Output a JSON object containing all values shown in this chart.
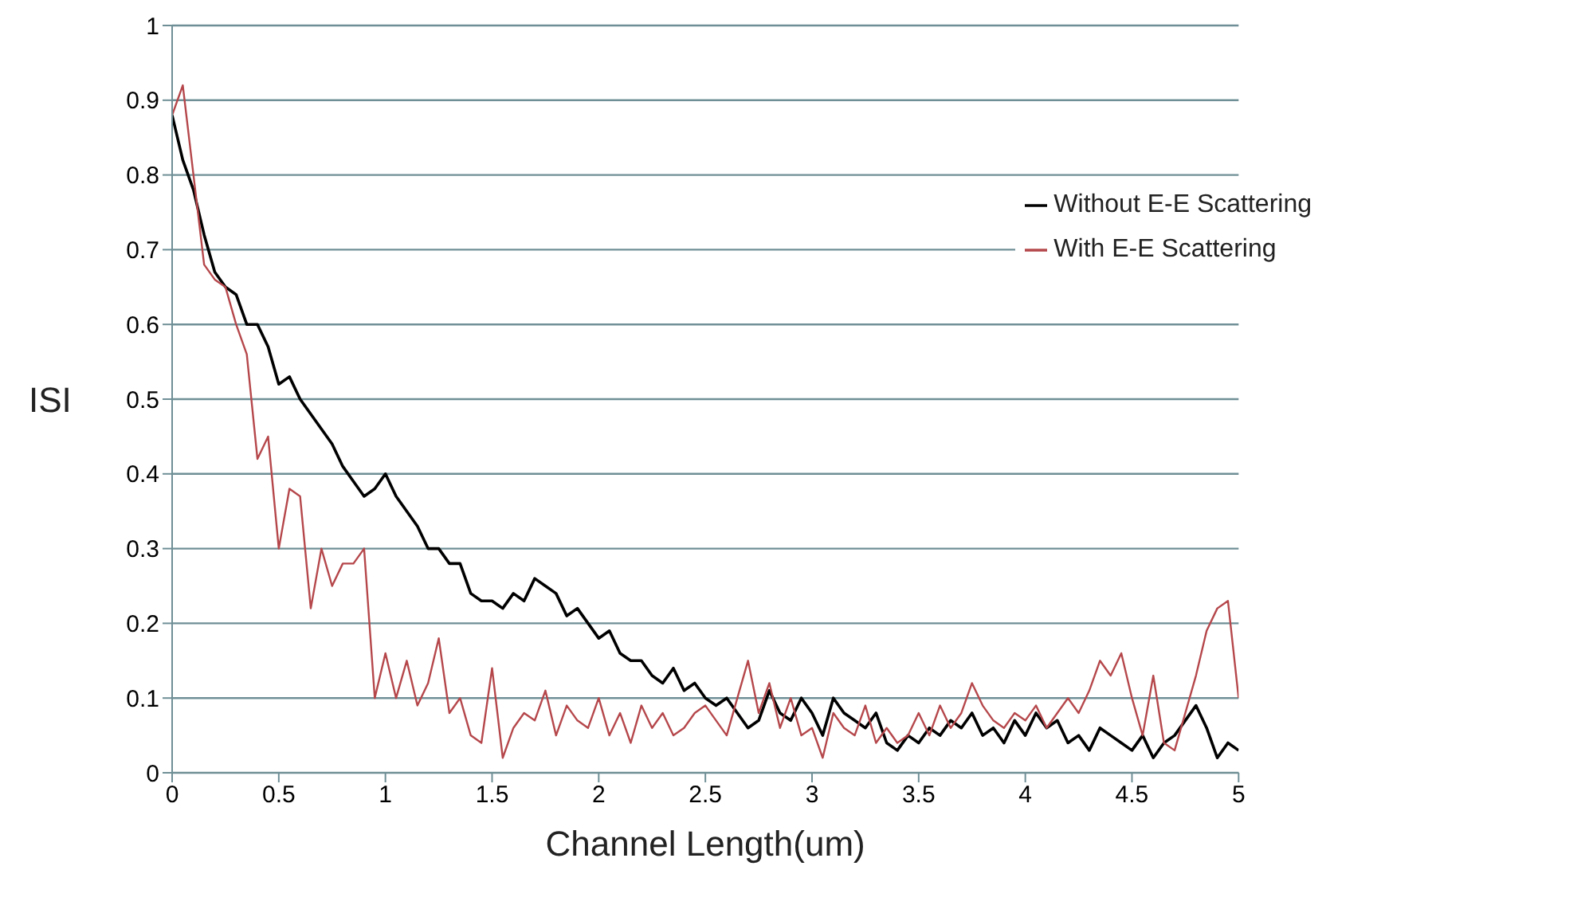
{
  "chart_data": {
    "type": "line",
    "xlabel": "Channel Length(um)",
    "ylabel": "ISI",
    "x": [
      0,
      0.05,
      0.1,
      0.15,
      0.2,
      0.25,
      0.3,
      0.35,
      0.4,
      0.45,
      0.5,
      0.55,
      0.6,
      0.65,
      0.7,
      0.75,
      0.8,
      0.85,
      0.9,
      0.95,
      1,
      1.05,
      1.1,
      1.15,
      1.2,
      1.25,
      1.3,
      1.35,
      1.4,
      1.45,
      1.5,
      1.55,
      1.6,
      1.65,
      1.7,
      1.75,
      1.8,
      1.85,
      1.9,
      1.95,
      2,
      2.05,
      2.1,
      2.15,
      2.2,
      2.25,
      2.3,
      2.35,
      2.4,
      2.45,
      2.5,
      2.55,
      2.6,
      2.65,
      2.7,
      2.75,
      2.8,
      2.85,
      2.9,
      2.95,
      3,
      3.05,
      3.1,
      3.15,
      3.2,
      3.25,
      3.3,
      3.35,
      3.4,
      3.45,
      3.5,
      3.55,
      3.6,
      3.65,
      3.7,
      3.75,
      3.8,
      3.85,
      3.9,
      3.95,
      4,
      4.05,
      4.1,
      4.15,
      4.2,
      4.25,
      4.3,
      4.35,
      4.4,
      4.45,
      4.5,
      4.55,
      4.6,
      4.65,
      4.7,
      4.75,
      4.8,
      4.85,
      4.9,
      4.95,
      5
    ],
    "series": [
      {
        "name": "Without E-E Scattering",
        "color": "#000000",
        "values": [
          0.88,
          0.82,
          0.78,
          0.72,
          0.67,
          0.65,
          0.64,
          0.6,
          0.6,
          0.57,
          0.52,
          0.53,
          0.5,
          0.48,
          0.46,
          0.44,
          0.41,
          0.39,
          0.37,
          0.38,
          0.4,
          0.37,
          0.35,
          0.33,
          0.3,
          0.3,
          0.28,
          0.28,
          0.24,
          0.23,
          0.23,
          0.22,
          0.24,
          0.23,
          0.26,
          0.25,
          0.24,
          0.21,
          0.22,
          0.2,
          0.18,
          0.19,
          0.16,
          0.15,
          0.15,
          0.13,
          0.12,
          0.14,
          0.11,
          0.12,
          0.1,
          0.09,
          0.1,
          0.08,
          0.06,
          0.07,
          0.11,
          0.08,
          0.07,
          0.1,
          0.08,
          0.05,
          0.1,
          0.08,
          0.07,
          0.06,
          0.08,
          0.04,
          0.03,
          0.05,
          0.04,
          0.06,
          0.05,
          0.07,
          0.06,
          0.08,
          0.05,
          0.06,
          0.04,
          0.07,
          0.05,
          0.08,
          0.06,
          0.07,
          0.04,
          0.05,
          0.03,
          0.06,
          0.05,
          0.04,
          0.03,
          0.05,
          0.02,
          0.04,
          0.05,
          0.07,
          0.09,
          0.06,
          0.02,
          0.04,
          0.03
        ]
      },
      {
        "name": "With E-E Scattering",
        "color": "#b5474b",
        "values": [
          0.88,
          0.92,
          0.8,
          0.68,
          0.66,
          0.65,
          0.6,
          0.56,
          0.42,
          0.45,
          0.3,
          0.38,
          0.37,
          0.22,
          0.3,
          0.25,
          0.28,
          0.28,
          0.3,
          0.1,
          0.16,
          0.1,
          0.15,
          0.09,
          0.12,
          0.18,
          0.08,
          0.1,
          0.05,
          0.04,
          0.14,
          0.02,
          0.06,
          0.08,
          0.07,
          0.11,
          0.05,
          0.09,
          0.07,
          0.06,
          0.1,
          0.05,
          0.08,
          0.04,
          0.09,
          0.06,
          0.08,
          0.05,
          0.06,
          0.08,
          0.09,
          0.07,
          0.05,
          0.1,
          0.15,
          0.08,
          0.12,
          0.06,
          0.1,
          0.05,
          0.06,
          0.02,
          0.08,
          0.06,
          0.05,
          0.09,
          0.04,
          0.06,
          0.04,
          0.05,
          0.08,
          0.05,
          0.09,
          0.06,
          0.08,
          0.12,
          0.09,
          0.07,
          0.06,
          0.08,
          0.07,
          0.09,
          0.06,
          0.08,
          0.1,
          0.08,
          0.11,
          0.15,
          0.13,
          0.16,
          0.1,
          0.05,
          0.13,
          0.04,
          0.03,
          0.08,
          0.13,
          0.19,
          0.22,
          0.23,
          0.1
        ]
      }
    ],
    "xlim": [
      0,
      5
    ],
    "xticks": [
      0,
      0.5,
      1,
      1.5,
      2,
      2.5,
      3,
      3.5,
      4,
      4.5,
      5
    ],
    "ylim": [
      0,
      1
    ],
    "yticks": [
      0,
      0.1,
      0.2,
      0.3,
      0.4,
      0.5,
      0.6,
      0.7,
      0.8,
      0.9,
      1
    ],
    "grid": "y",
    "legend": "top right",
    "marker": "none",
    "line_style": "solid"
  }
}
